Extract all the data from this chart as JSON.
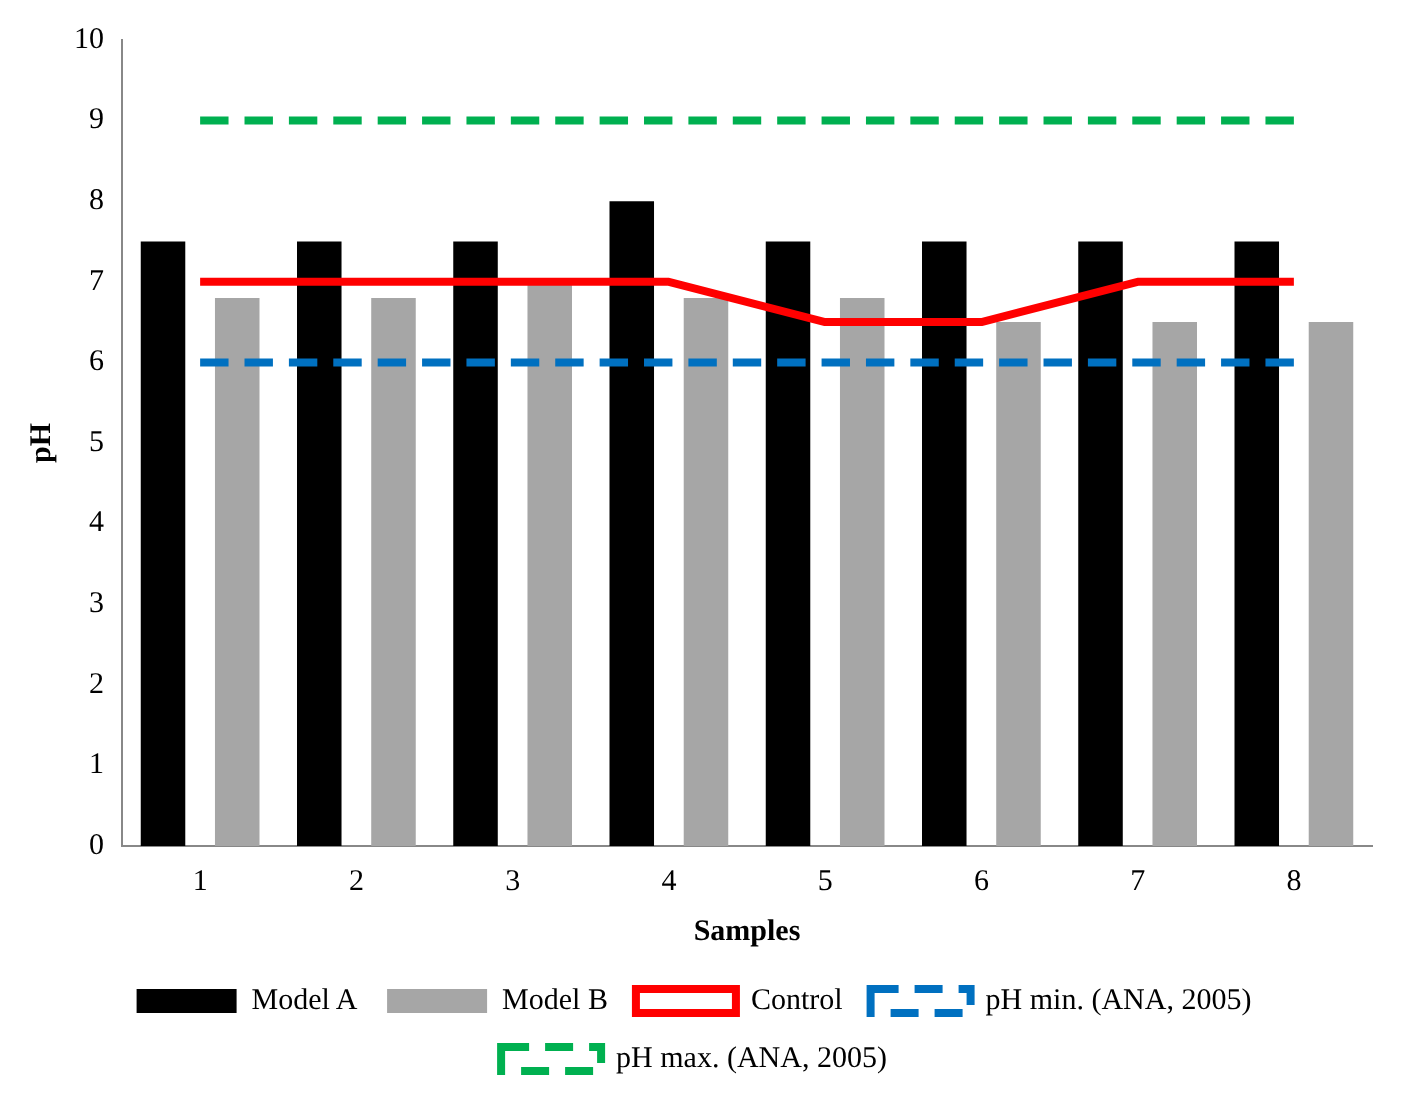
{
  "chart_data": {
    "type": "bar",
    "xlabel": "Samples",
    "ylabel": "pH",
    "categories": [
      "1",
      "2",
      "3",
      "4",
      "5",
      "6",
      "7",
      "8"
    ],
    "ylim": [
      0,
      10
    ],
    "yticks": [
      0,
      1,
      2,
      3,
      4,
      5,
      6,
      7,
      8,
      9,
      10
    ],
    "grid": false,
    "legend": "bottom",
    "marker": "none",
    "series": [
      {
        "name": "Model A",
        "color": "#000000",
        "values": [
          7.5,
          7.5,
          7.5,
          8,
          7.5,
          7.5,
          7.5,
          7.5
        ]
      },
      {
        "name": "Model B",
        "color": "#a6a6a6",
        "values": [
          6.8,
          6.8,
          7,
          6.8,
          6.8,
          6.5,
          6.5,
          6.5
        ]
      },
      {
        "name": "Control",
        "type": "line",
        "color": "#ff0000",
        "line_style": "solid",
        "values": [
          7,
          7,
          7,
          7,
          6.5,
          6.5,
          7,
          7
        ]
      },
      {
        "name": "pH min. (ANA, 2005)",
        "type": "line",
        "color": "#0070c0",
        "line_style": "dashed",
        "values": [
          6,
          6,
          6,
          6,
          6,
          6,
          6,
          6
        ]
      },
      {
        "name": "pH max. (ANA, 2005)",
        "type": "line",
        "color": "#00b050",
        "line_style": "dashed",
        "values": [
          9,
          9,
          9,
          9,
          9,
          9,
          9,
          9
        ]
      }
    ]
  }
}
